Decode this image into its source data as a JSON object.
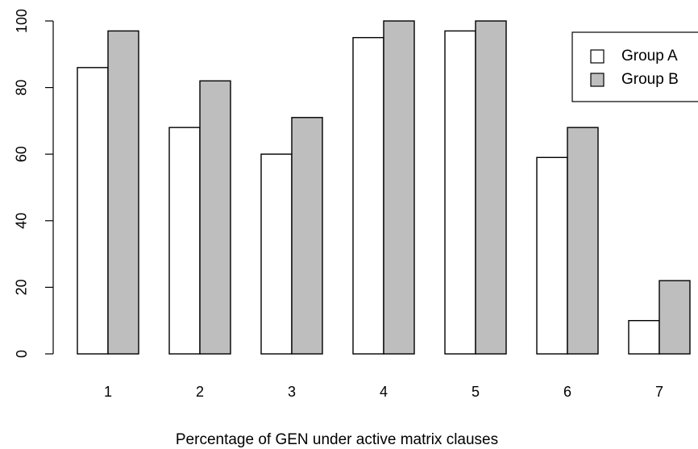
{
  "chart_data": {
    "type": "bar",
    "title": "",
    "xlabel": "Percentage of GEN under active matrix clauses",
    "ylabel": "",
    "categories": [
      "1",
      "2",
      "3",
      "4",
      "5",
      "6",
      "7"
    ],
    "series": [
      {
        "name": "Group A",
        "values": [
          86,
          68,
          60,
          95,
          97,
          59,
          10
        ],
        "color": "#ffffff"
      },
      {
        "name": "Group B",
        "values": [
          97,
          82,
          71,
          100,
          100,
          68,
          22
        ],
        "color": "#bebebe"
      }
    ],
    "ylim": [
      0,
      100
    ],
    "yticks": [
      0,
      20,
      40,
      60,
      80,
      100
    ],
    "grid": false,
    "legend_position": "top-right"
  }
}
